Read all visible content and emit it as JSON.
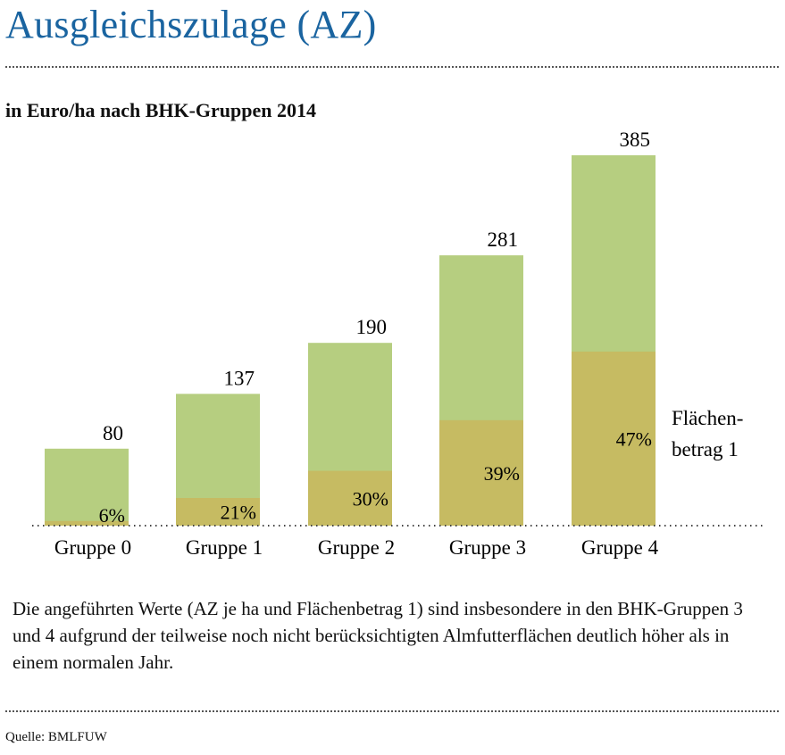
{
  "title": "Ausgleichszulage (AZ)",
  "subtitle": "in Euro/ha nach BHK-Gruppen 2014",
  "chart_data": {
    "type": "bar",
    "stacked": true,
    "categories": [
      "Gruppe 0",
      "Gruppe 1",
      "Gruppe 2",
      "Gruppe 3",
      "Gruppe 4"
    ],
    "values": [
      80,
      137,
      190,
      281,
      385
    ],
    "value_labels": [
      "80",
      "137",
      "190",
      "281",
      "385"
    ],
    "flaechenbetrag_share_pct": [
      6,
      21,
      30,
      39,
      47
    ],
    "share_labels": [
      "6%",
      "21%",
      "30%",
      "39%",
      "47%"
    ],
    "series_annotation": [
      "Flächen-",
      "betrag 1"
    ],
    "ylim": [
      0,
      385
    ],
    "colors": {
      "total": "#b6ce80",
      "flaechenbetrag": "#c6bb62"
    }
  },
  "note": "Die angeführten Werte (AZ je ha und Flächenbetrag 1) sind insbesondere in den BHK-Gruppen 3 und 4 aufgrund der teilweise noch nicht berücksichtigten Almfutterflächen deutlich höher als in einem normalen Jahr.",
  "source": "Quelle: BMLFUW"
}
